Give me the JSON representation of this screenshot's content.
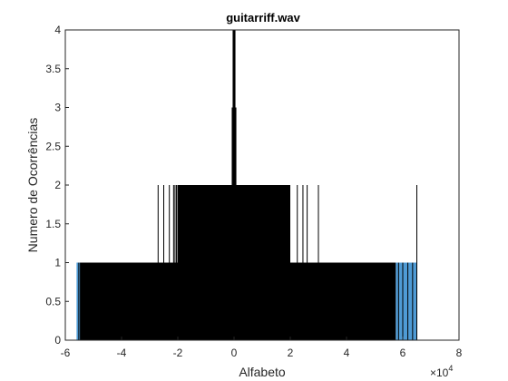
{
  "chart_data": {
    "type": "bar",
    "title": "guitarriff.wav",
    "xlabel": "Alfabeto",
    "ylabel": "Numero de Ocorrências",
    "xlim": [
      -6,
      8
    ],
    "ylim": [
      0,
      4
    ],
    "x_scale_exponent_label": "×10",
    "x_scale_exponent_power": "4",
    "x_ticks": [
      "-6",
      "-4",
      "-2",
      "0",
      "2",
      "4",
      "6",
      "8"
    ],
    "y_ticks": [
      "0",
      "0.5",
      "1",
      "1.5",
      "2",
      "2.5",
      "3",
      "3.5",
      "4"
    ],
    "grid": false,
    "bar_face_color": "#4f9bd5",
    "bar_edge_color": "#000000",
    "count_regions": [
      {
        "x_from": -5.6,
        "x_to": 6.5,
        "count": 1
      },
      {
        "x_from": -2.0,
        "x_to": 2.0,
        "count": 2
      },
      {
        "x_from": -0.05,
        "x_to": 0.05,
        "count": 4
      }
    ],
    "isolated_bars": [
      {
        "x": -2.7,
        "count": 2
      },
      {
        "x": -2.5,
        "count": 2
      },
      {
        "x": -2.3,
        "count": 2
      },
      {
        "x": -2.15,
        "count": 2
      },
      {
        "x": 2.25,
        "count": 2
      },
      {
        "x": 2.45,
        "count": 2
      },
      {
        "x": 2.6,
        "count": 2
      },
      {
        "x": 3.0,
        "count": 2
      },
      {
        "x": 6.5,
        "count": 2
      },
      {
        "x": -0.05,
        "count": 3
      },
      {
        "x": 0.05,
        "count": 3
      }
    ]
  }
}
